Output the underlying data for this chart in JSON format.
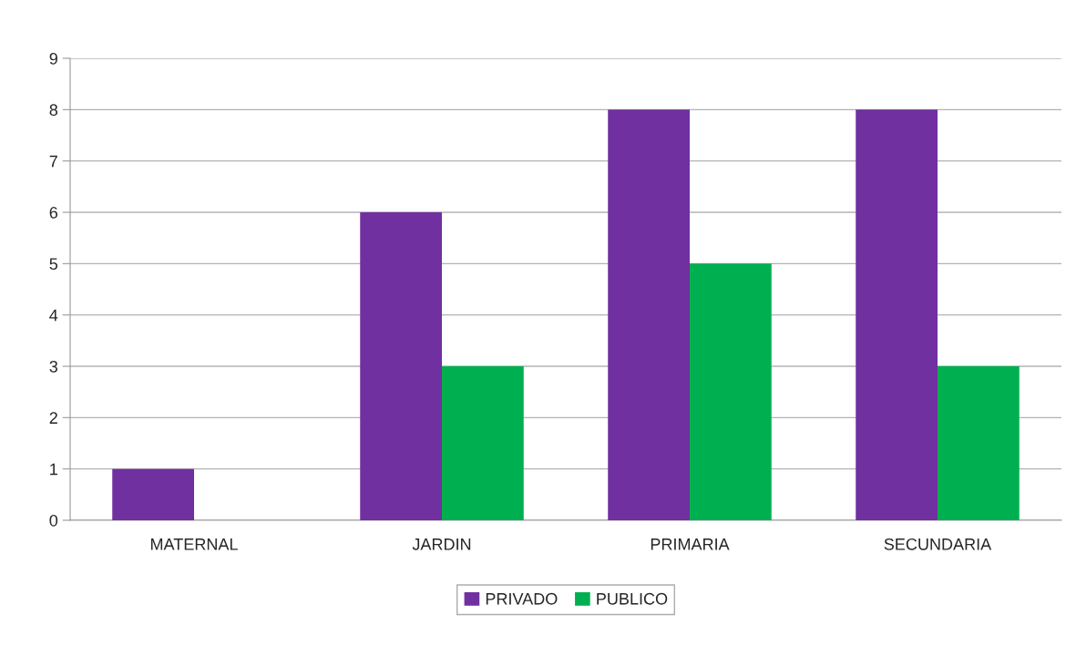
{
  "chart_data": {
    "type": "bar",
    "categories": [
      "MATERNAL",
      "JARDIN",
      "PRIMARIA",
      "SECUNDARIA"
    ],
    "series": [
      {
        "name": "PRIVADO",
        "color": "#7030a0",
        "values": [
          1,
          6,
          8,
          8
        ]
      },
      {
        "name": "PUBLICO",
        "color": "#00b050",
        "values": [
          0,
          3,
          5,
          3
        ]
      }
    ],
    "ylim": [
      0,
      9
    ],
    "yticks": [
      0,
      1,
      2,
      3,
      4,
      5,
      6,
      7,
      8,
      9
    ],
    "grid": "y",
    "legend": "bottom"
  }
}
